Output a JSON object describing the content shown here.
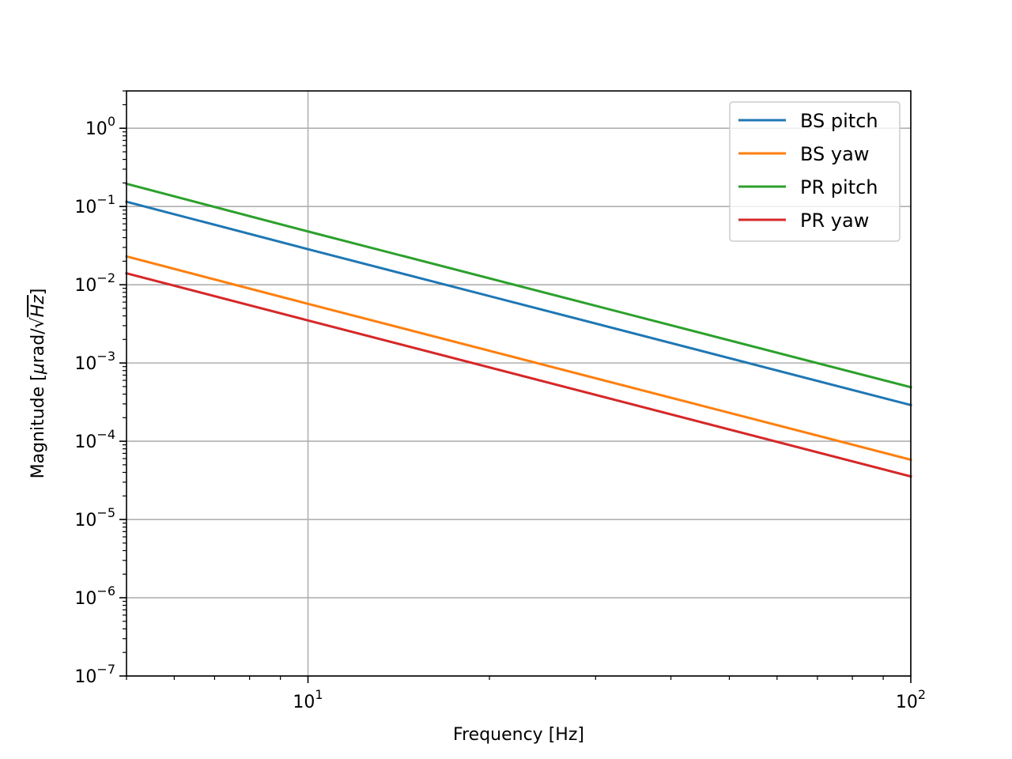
{
  "chart_data": {
    "type": "line",
    "title": "",
    "xlabel": "Frequency [Hz]",
    "ylabel": {
      "prefix": "Magnitude [",
      "mu": "μ",
      "unit": "rad/",
      "sqrt_arg": "Hz",
      "suffix": "]"
    },
    "xscale": "log",
    "yscale": "log",
    "xlim": [
      5,
      100
    ],
    "ylim": [
      1e-07,
      3
    ],
    "grid": true,
    "legend_position": "top-right",
    "x_major_ticks": [
      {
        "value": 10,
        "base": "10",
        "exp": "1"
      },
      {
        "value": 100,
        "base": "10",
        "exp": "2"
      }
    ],
    "x_minor_ticks": [
      5,
      6,
      7,
      8,
      9,
      20,
      30,
      40,
      50,
      60,
      70,
      80,
      90
    ],
    "y_major_ticks": [
      {
        "value": 1,
        "base": "10",
        "exp": "0"
      },
      {
        "value": 0.1,
        "base": "10",
        "exp": "−1"
      },
      {
        "value": 0.01,
        "base": "10",
        "exp": "−2"
      },
      {
        "value": 0.001,
        "base": "10",
        "exp": "−3"
      },
      {
        "value": 0.0001,
        "base": "10",
        "exp": "−4"
      },
      {
        "value": 1e-05,
        "base": "10",
        "exp": "−5"
      },
      {
        "value": 1e-06,
        "base": "10",
        "exp": "−6"
      },
      {
        "value": 1e-07,
        "base": "10",
        "exp": "−7"
      }
    ],
    "series": [
      {
        "name": "BS pitch",
        "color": "#1f77b4",
        "x": [
          5,
          10,
          100
        ],
        "values": [
          0.115,
          0.0285,
          0.00029
        ]
      },
      {
        "name": "BS yaw",
        "color": "#ff7f0e",
        "x": [
          5,
          10,
          100
        ],
        "values": [
          0.023,
          0.0057,
          5.8e-05
        ]
      },
      {
        "name": "PR pitch",
        "color": "#2ca02c",
        "x": [
          5,
          10,
          100
        ],
        "values": [
          0.195,
          0.048,
          0.00049
        ]
      },
      {
        "name": "PR yaw",
        "color": "#d62728",
        "x": [
          5,
          10,
          100
        ],
        "values": [
          0.014,
          0.0035,
          3.55e-05
        ]
      }
    ]
  }
}
